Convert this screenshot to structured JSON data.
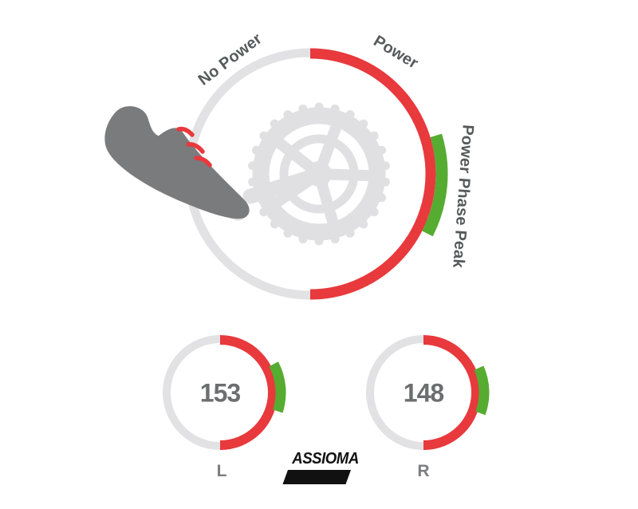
{
  "colors": {
    "red": "#e8393d",
    "green": "#56ab31",
    "ring": "#e2e2e4",
    "gear": "#e0e0e2",
    "shoe": "#7a7b7d",
    "label": "#58595b",
    "value": "#6d6e70",
    "side": "#7c7d80",
    "logo": "#111111"
  },
  "main_gauge": {
    "labels": {
      "no_power": "No Power",
      "power": "Power",
      "peak": "Power Phase Peak"
    },
    "arcs": {
      "base": {
        "name": "No Power",
        "start_deg": 180,
        "end_deg": 360,
        "color": "ring"
      },
      "power": {
        "name": "Power",
        "start_deg": 0,
        "end_deg": 180,
        "color": "red"
      },
      "peak": {
        "name": "Power Phase Peak",
        "start_deg": 73,
        "end_deg": 117,
        "color": "green"
      }
    }
  },
  "gauges": {
    "left": {
      "value": "153",
      "label": "L",
      "arcs": {
        "base": {
          "start_deg": 180,
          "end_deg": 360,
          "color": "ring"
        },
        "power": {
          "start_deg": 0,
          "end_deg": 180,
          "color": "red"
        },
        "peak": {
          "start_deg": 62,
          "end_deg": 108,
          "color": "green"
        }
      }
    },
    "right": {
      "value": "148",
      "label": "R",
      "arcs": {
        "base": {
          "start_deg": 180,
          "end_deg": 360,
          "color": "ring"
        },
        "power": {
          "start_deg": 0,
          "end_deg": 180,
          "color": "red"
        },
        "peak": {
          "start_deg": 66,
          "end_deg": 110,
          "color": "green"
        }
      }
    }
  },
  "logo": {
    "text": "ASSIOMA"
  }
}
